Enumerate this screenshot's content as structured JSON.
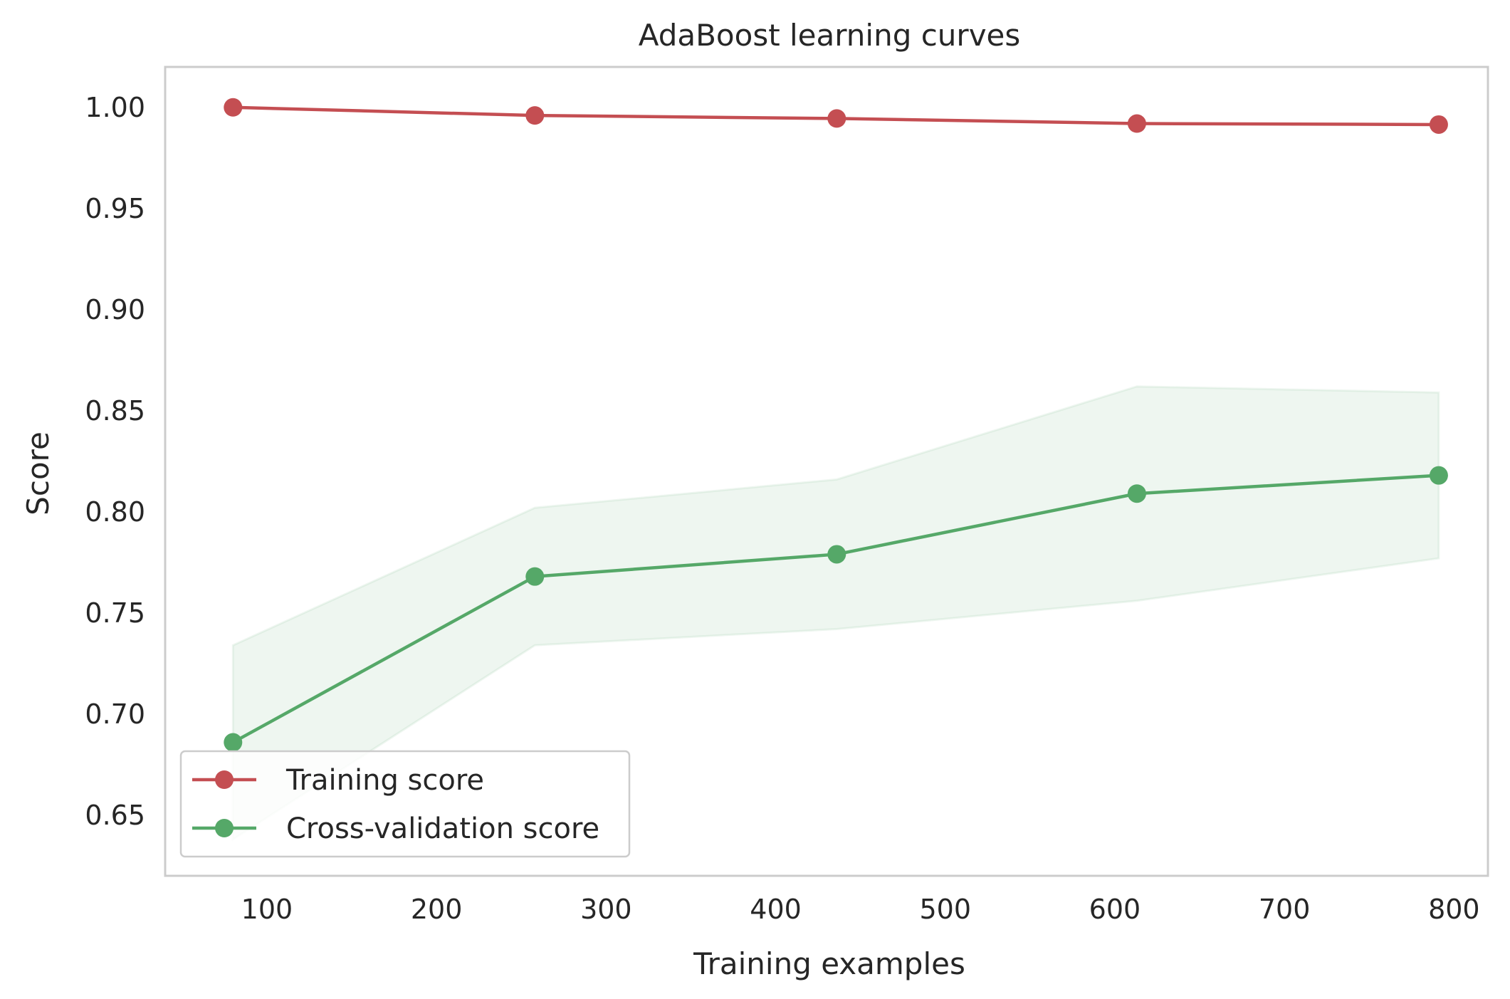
{
  "chart_data": {
    "type": "line",
    "title": "AdaBoost learning curves",
    "xlabel": "Training examples",
    "ylabel": "Score",
    "xlim": [
      40,
      820
    ],
    "ylim": [
      0.62,
      1.02
    ],
    "xticks": [
      100,
      200,
      300,
      400,
      500,
      600,
      700,
      800
    ],
    "xtick_labels": [
      "100",
      "200",
      "300",
      "400",
      "500",
      "600",
      "700",
      "800"
    ],
    "yticks": [
      0.65,
      0.7,
      0.75,
      0.8,
      0.85,
      0.9,
      0.95,
      1.0
    ],
    "ytick_labels": [
      "0.65",
      "0.70",
      "0.75",
      "0.80",
      "0.85",
      "0.90",
      "0.95",
      "1.00"
    ],
    "grid": false,
    "legend_position": "lower-left",
    "x": [
      80,
      258,
      436,
      613,
      791
    ],
    "series": [
      {
        "name": "Training score",
        "color": "#c44e52",
        "values": [
          1.0,
          0.996,
          0.9945,
          0.992,
          0.9915
        ]
      },
      {
        "name": "Cross-validation score",
        "color": "#55a868",
        "values": [
          0.686,
          0.768,
          0.779,
          0.809,
          0.818
        ],
        "band_upper": [
          0.734,
          0.802,
          0.816,
          0.862,
          0.859
        ],
        "band_lower": [
          0.638,
          0.734,
          0.742,
          0.756,
          0.777
        ]
      }
    ]
  }
}
